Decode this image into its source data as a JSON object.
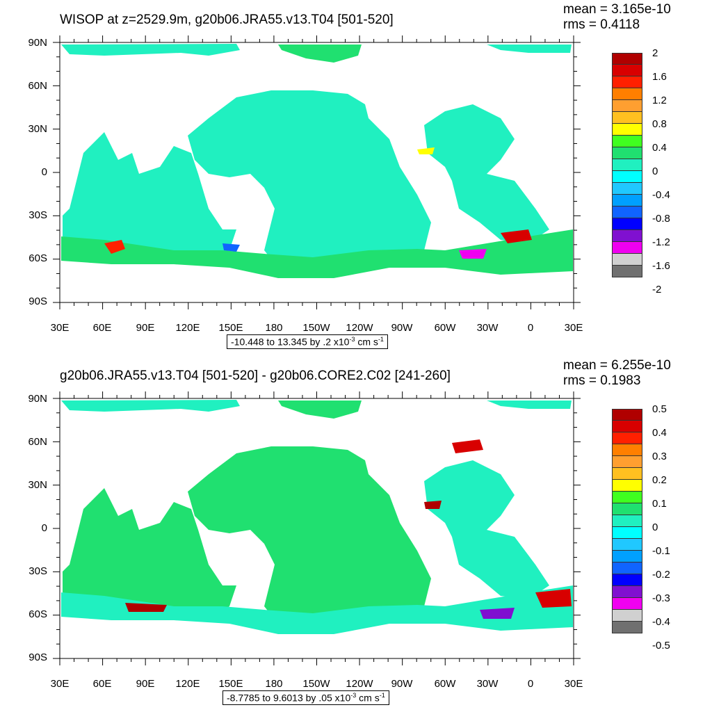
{
  "panels": [
    {
      "title": "WISOP at z=2529.9m, g20b06.JRA55.v13.T04 [501-520]",
      "mean": "mean = 3.165e-10",
      "rms": "rms = 0.4118",
      "ci_prefix": "-10.448 to 13.345 by .2 x10",
      "ci_exp": "-3",
      "ci_mid": " cm s",
      "ci_exp2": "-1",
      "levels": [
        "2",
        "1.6",
        "1.2",
        "0.8",
        "0.4",
        "0",
        "-0.4",
        "-0.8",
        "-1.2",
        "-1.6",
        "-2"
      ]
    },
    {
      "title": "g20b06.JRA55.v13.T04 [501-520] - g20b06.CORE2.C02 [241-260]",
      "mean": "mean = 6.255e-10",
      "rms": "rms = 0.1983",
      "ci_prefix": "-8.7785 to 9.6013 by .05 x10",
      "ci_exp": "-3",
      "ci_mid": " cm s",
      "ci_exp2": "-1",
      "levels": [
        "0.5",
        "0.4",
        "0.3",
        "0.2",
        "0.1",
        "0",
        "-0.1",
        "-0.2",
        "-0.3",
        "-0.4",
        "-0.5"
      ]
    }
  ],
  "axes": {
    "lat_labels": [
      "90N",
      "60N",
      "30N",
      "0",
      "30S",
      "60S",
      "90S"
    ],
    "lon_labels": [
      "30E",
      "60E",
      "90E",
      "120E",
      "150E",
      "180",
      "150W",
      "120W",
      "90W",
      "60W",
      "30W",
      "0",
      "30E"
    ]
  },
  "colorbar_colors": [
    "#b00000",
    "#d80000",
    "#ff2000",
    "#ff7f00",
    "#ff9f30",
    "#ffc020",
    "#ffff00",
    "#40ff20",
    "#20e070",
    "#20f0c0",
    "#00ffff",
    "#20c8ff",
    "#00a0ff",
    "#1064ff",
    "#0000ff",
    "#8010d0",
    "#f000f0",
    "#d0d0d0",
    "#707070"
  ]
}
